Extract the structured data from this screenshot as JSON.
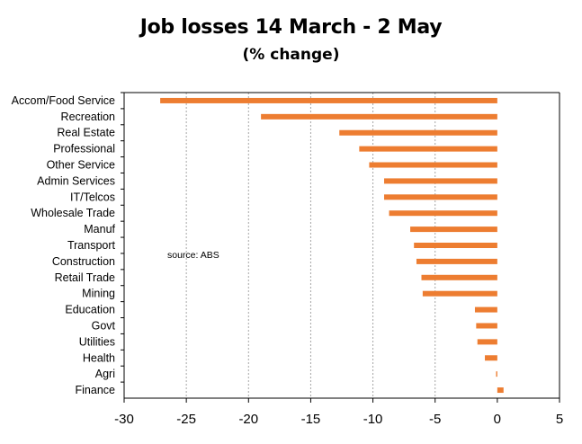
{
  "chart_data": {
    "type": "bar",
    "orientation": "horizontal",
    "title": "Job losses 14 March - 2 May",
    "subtitle": "(% change)",
    "source_note": "source:  ABS",
    "categories": [
      "Accom/Food Service",
      "Recreation",
      "Real Estate",
      "Professional",
      "Other Service",
      "Admin Services",
      "IT/Telcos",
      "Wholesale Trade",
      "Manuf",
      "Transport",
      "Construction",
      "Retail Trade",
      "Mining",
      "Education",
      "Govt",
      "Utilities",
      "Health",
      "Agri",
      "Finance"
    ],
    "values": [
      -27.1,
      -19.0,
      -12.7,
      -11.1,
      -10.3,
      -9.1,
      -9.1,
      -8.7,
      -7.0,
      -6.7,
      -6.5,
      -6.1,
      -6.0,
      -1.8,
      -1.7,
      -1.6,
      -1.0,
      -0.1,
      0.5
    ],
    "xlim": [
      -30,
      5
    ],
    "xticks": [
      "-30",
      "-25",
      "-20",
      "-15",
      "-10",
      "-5",
      "0",
      "5"
    ],
    "grid": "vertical dashed",
    "colors": {
      "bar": "#ED7D31",
      "grid": "#A6A6A6",
      "axis": "#000000"
    }
  }
}
